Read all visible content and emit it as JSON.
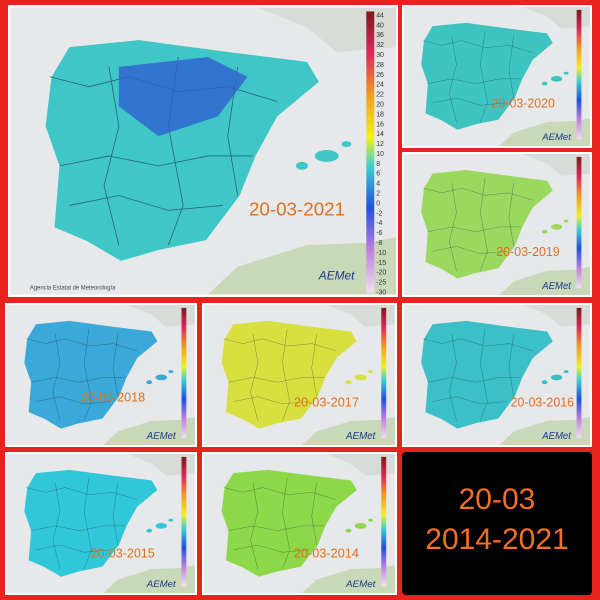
{
  "collage_title": {
    "line1": "20-03",
    "line2": "2014-2021"
  },
  "maps": [
    {
      "date": "20-03-2021",
      "agency": "Agencia Estatal de Meteorología",
      "logo": "AEMet"
    },
    {
      "date": "20-03-2020",
      "logo": "AEMet"
    },
    {
      "date": "20-03-2019",
      "logo": "AEMet"
    },
    {
      "date": "20-03-2018",
      "logo": "AEMet"
    },
    {
      "date": "20-03-2017",
      "logo": "AEMet"
    },
    {
      "date": "20-03-2016",
      "logo": "AEMet"
    },
    {
      "date": "20-03-2015",
      "logo": "AEMet"
    },
    {
      "date": "20-03-2014",
      "logo": "AEMet"
    }
  ],
  "legend_ticks": [
    "44",
    "40",
    "36",
    "32",
    "30",
    "28",
    "26",
    "24",
    "22",
    "20",
    "18",
    "16",
    "14",
    "12",
    "10",
    "8",
    "6",
    "4",
    "2",
    "0",
    "-2",
    "-4",
    "-6",
    "-8",
    "-10",
    "-15",
    "-20",
    "-25",
    "-30"
  ]
}
